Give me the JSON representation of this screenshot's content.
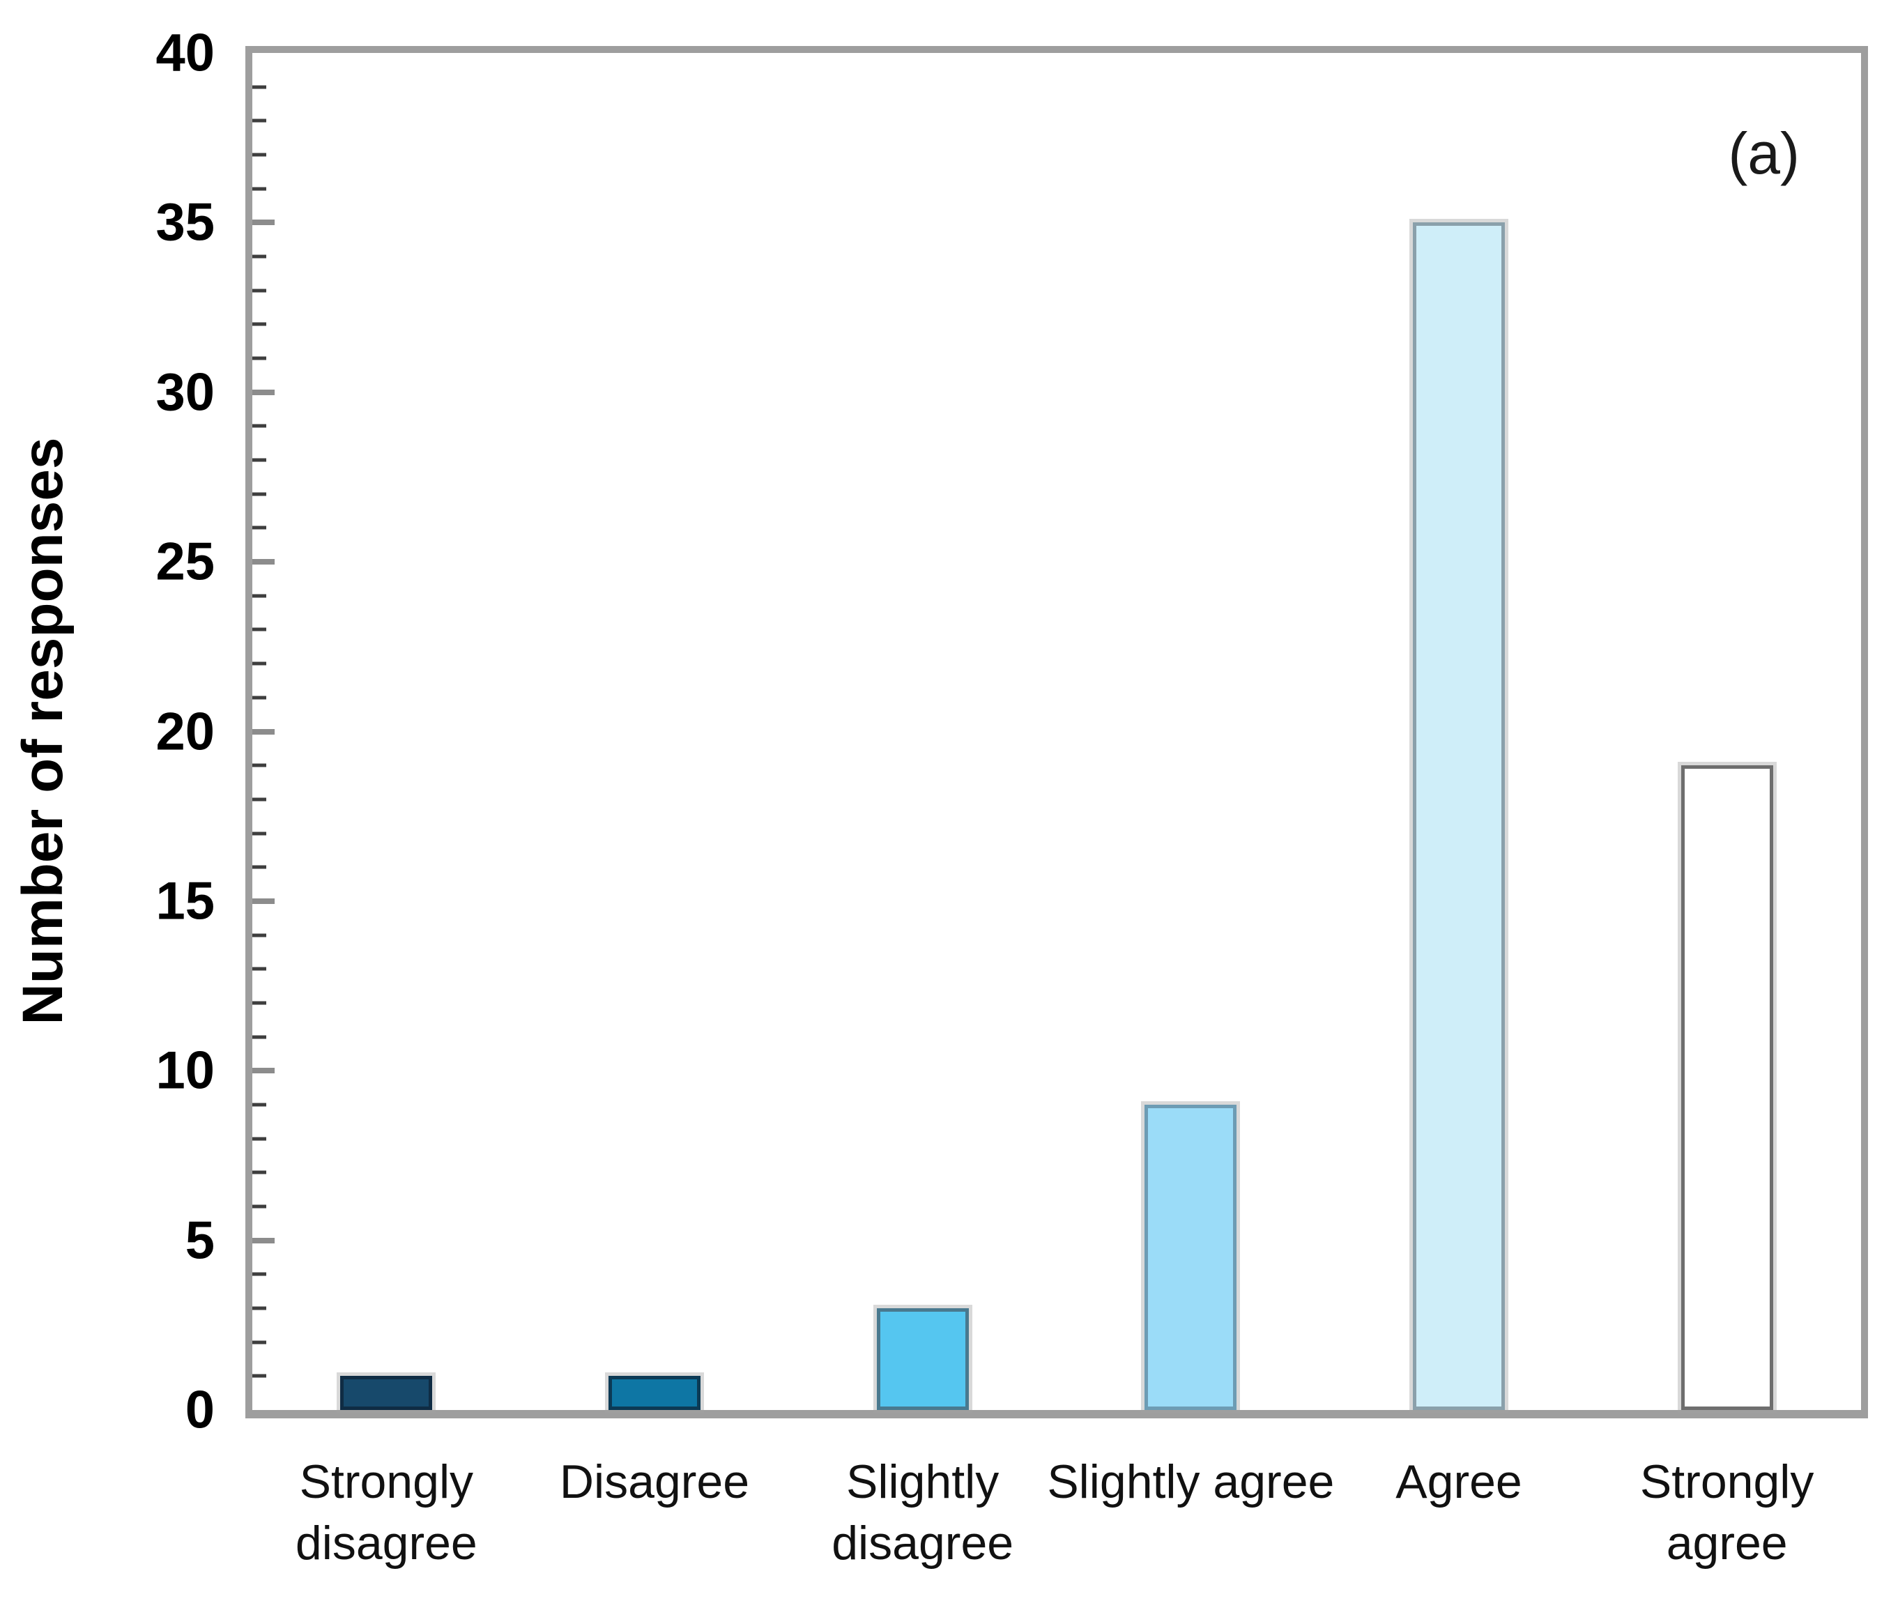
{
  "panel_label": "(a)",
  "chart_data": {
    "type": "bar",
    "title": "",
    "xlabel": "",
    "ylabel": "Number of responses",
    "categories": [
      "Strongly disagree",
      "Disagree",
      "Slightly disagree",
      "Slightly agree",
      "Agree",
      "Strongly agree"
    ],
    "values": [
      1,
      1,
      3,
      9,
      35,
      19
    ],
    "ylim": [
      0,
      40
    ],
    "ytick_step": 5,
    "minor_tick_step": 1,
    "grid": false,
    "legend": false,
    "annotation": "(a)",
    "bar_fill_colors": [
      "#17496B",
      "#0E76A4",
      "#55C6F0",
      "#9BDCF8",
      "#CFEEF9",
      "#FFFFFF"
    ],
    "bar_border_colors": [
      "#0F2C44",
      "#0C3A55",
      "#49798F",
      "#6D9CB4",
      "#8AA0AB",
      "#6E6E6E"
    ],
    "frame_color": "#9E9E9E",
    "minor_tick_color": "#3E3E3E",
    "major_tick_color": "#8C8C8C"
  }
}
